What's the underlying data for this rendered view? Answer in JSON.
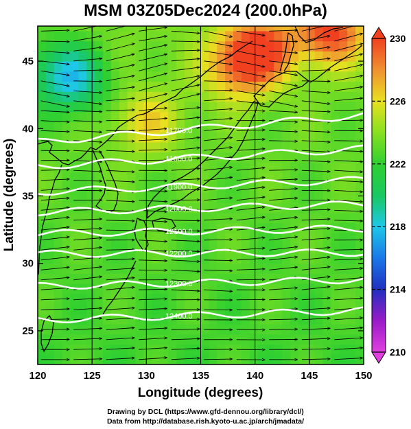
{
  "title": "MSM 03Z05Dec2024 (200.0hPa)",
  "chart_data": {
    "type": "heatmap",
    "x_axis": {
      "label": "Longitude (degrees)",
      "range": [
        120,
        150
      ],
      "ticks": [
        120,
        125,
        130,
        135,
        140,
        145,
        150
      ]
    },
    "y_axis": {
      "label": "Latitude  (degrees)",
      "range": [
        22.5,
        47.6
      ],
      "ticks": [
        25,
        30,
        35,
        40,
        45
      ]
    },
    "colorbar": {
      "range": [
        210,
        230
      ],
      "tick_labels": [
        "230",
        "226",
        "222",
        "218",
        "214",
        "210"
      ],
      "tick_values": [
        230,
        226,
        222,
        218,
        214,
        210
      ],
      "stops": [
        {
          "value": 210,
          "color": "#e040e0"
        },
        {
          "value": 212,
          "color": "#9a1ac8"
        },
        {
          "value": 214,
          "color": "#2030c0"
        },
        {
          "value": 216,
          "color": "#1a78e8"
        },
        {
          "value": 218,
          "color": "#1ec8e8"
        },
        {
          "value": 220,
          "color": "#18c860"
        },
        {
          "value": 222,
          "color": "#30d030"
        },
        {
          "value": 224,
          "color": "#88e020"
        },
        {
          "value": 226,
          "color": "#e8e020"
        },
        {
          "value": 228,
          "color": "#f09030"
        },
        {
          "value": 230,
          "color": "#f04020"
        }
      ]
    },
    "contour_labels": [
      "11700.0",
      "11800.0",
      "11900.0",
      "12000.0",
      "12100.0",
      "12200.0",
      "12300.0",
      "12400.0"
    ],
    "contours": [
      {
        "label": "11700.0",
        "lat_at_120": 39.0,
        "lat_at_150": 41.0
      },
      {
        "label": "11800.0",
        "lat_at_120": 37.2,
        "lat_at_150": 38.5
      },
      {
        "label": "11900.0",
        "lat_at_120": 35.3,
        "lat_at_150": 36.2
      },
      {
        "label": "12000.0",
        "lat_at_120": 33.8,
        "lat_at_150": 34.4
      },
      {
        "label": "12100.0",
        "lat_at_120": 32.2,
        "lat_at_150": 32.6
      },
      {
        "label": "12200.0",
        "lat_at_120": 30.7,
        "lat_at_150": 30.8
      },
      {
        "label": "12300.0",
        "lat_at_120": 28.3,
        "lat_at_150": 28.8
      },
      {
        "label": "12400.0",
        "lat_at_120": 25.8,
        "lat_at_150": 26.5
      }
    ],
    "field_features": [
      {
        "name": "warm",
        "lon": 140.5,
        "lat": 46.0,
        "value": 229
      },
      {
        "name": "warm",
        "lon": 147.0,
        "lat": 47.2,
        "value": 229.5
      },
      {
        "name": "warm",
        "lon": 138.5,
        "lat": 44.5,
        "value": 227.5
      },
      {
        "name": "warm",
        "lon": 130.0,
        "lat": 40.5,
        "value": 226
      },
      {
        "name": "cool",
        "lon": 123.5,
        "lat": 43.5,
        "value": 219
      },
      {
        "name": "cool",
        "lon": 121.5,
        "lat": 44.5,
        "value": 220.5
      }
    ],
    "grid": true
  },
  "credits": [
    "Drawing by DCL (https://www.gfd-dennou.org/library/dcl/)",
    "Data from http://database.rish.kyoto-u.ac.jp/arch/jmadata/"
  ]
}
